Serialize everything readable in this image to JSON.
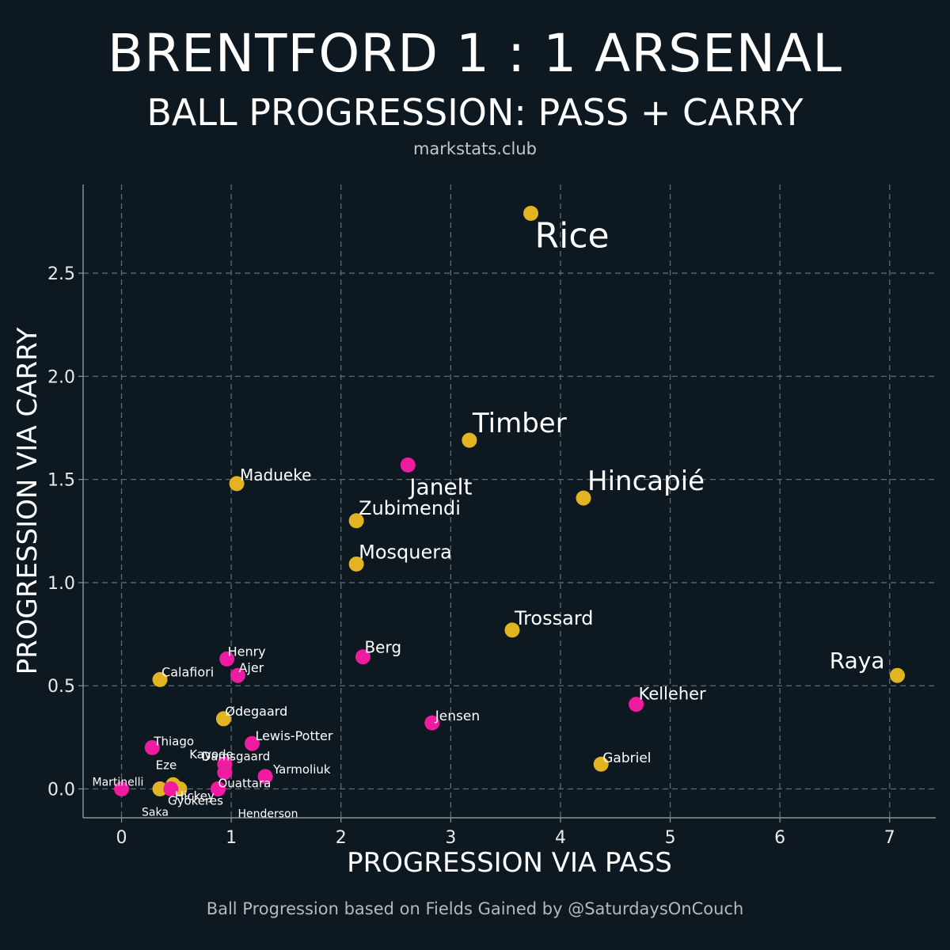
{
  "header": {
    "title": "BRENTFORD 1 : 1 ARSENAL",
    "subtitle": "BALL PROGRESSION: PASS + CARRY",
    "source": "markstats.club"
  },
  "footer": {
    "credit": "Ball Progression based on Fields Gained by @SaturdaysOnCouch"
  },
  "colors": {
    "background": "#0e1820",
    "arsenal": "#e3b422",
    "brentford": "#ef1ba1",
    "grid": "#5e6b73"
  },
  "chart_data": {
    "type": "scatter",
    "xlabel": "PROGRESSION VIA PASS",
    "ylabel": "PROGRESSION VIA CARRY",
    "xlim": [
      -0.35,
      7.42
    ],
    "ylim": [
      -0.14,
      2.93
    ],
    "xticks": [
      0,
      1,
      2,
      3,
      4,
      5,
      6,
      7
    ],
    "yticks": [
      0.0,
      0.5,
      1.0,
      1.5,
      2.0,
      2.5
    ],
    "ytick_labels": [
      "0.0",
      "0.5",
      "1.0",
      "1.5",
      "2.0",
      "2.5"
    ],
    "grid": true,
    "series": [
      {
        "name": "Arsenal",
        "color": "#e3b422",
        "points": [
          {
            "label": "Rice",
            "x": 3.73,
            "y": 2.79
          },
          {
            "label": "Timber",
            "x": 3.17,
            "y": 1.69
          },
          {
            "label": "Hincapié",
            "x": 4.21,
            "y": 1.41
          },
          {
            "label": "Madueke",
            "x": 1.05,
            "y": 1.48
          },
          {
            "label": "Zubimendi",
            "x": 2.14,
            "y": 1.3
          },
          {
            "label": "Mosquera",
            "x": 2.14,
            "y": 1.09
          },
          {
            "label": "Trossard",
            "x": 3.56,
            "y": 0.77
          },
          {
            "label": "Raya",
            "x": 7.07,
            "y": 0.55
          },
          {
            "label": "Calafiori",
            "x": 0.35,
            "y": 0.53
          },
          {
            "label": "Ødegaard",
            "x": 0.93,
            "y": 0.34
          },
          {
            "label": "Gabriel",
            "x": 4.37,
            "y": 0.12
          },
          {
            "label": "Eze",
            "x": 0.47,
            "y": 0.02
          },
          {
            "label": "Gyökeres",
            "x": 0.53,
            "y": 0.0
          },
          {
            "label": "Saka",
            "x": 0.35,
            "y": 0.0
          }
        ]
      },
      {
        "name": "Brentford",
        "color": "#ef1ba1",
        "points": [
          {
            "label": "Janelt",
            "x": 2.61,
            "y": 1.57
          },
          {
            "label": "Berg",
            "x": 2.2,
            "y": 0.64
          },
          {
            "label": "Henry",
            "x": 0.96,
            "y": 0.63
          },
          {
            "label": "Ajer",
            "x": 1.06,
            "y": 0.55
          },
          {
            "label": "Kelleher",
            "x": 4.69,
            "y": 0.41
          },
          {
            "label": "Jensen",
            "x": 2.83,
            "y": 0.32
          },
          {
            "label": "Lewis-Potter",
            "x": 1.19,
            "y": 0.22
          },
          {
            "label": "Thiago",
            "x": 0.28,
            "y": 0.2
          },
          {
            "label": "Kayode",
            "x": 0.94,
            "y": 0.12
          },
          {
            "label": "Damsgaard",
            "x": 0.94,
            "y": 0.08
          },
          {
            "label": "Yarmoliuk",
            "x": 1.31,
            "y": 0.06
          },
          {
            "label": "Martinelli",
            "x": 0.0,
            "y": 0.0
          },
          {
            "label": "Hickey",
            "x": 0.45,
            "y": 0.0
          },
          {
            "label": "Ouattara",
            "x": 0.88,
            "y": 0.0
          },
          {
            "label": "Henderson",
            "x": 0.88,
            "y": 0.0
          }
        ]
      }
    ]
  }
}
